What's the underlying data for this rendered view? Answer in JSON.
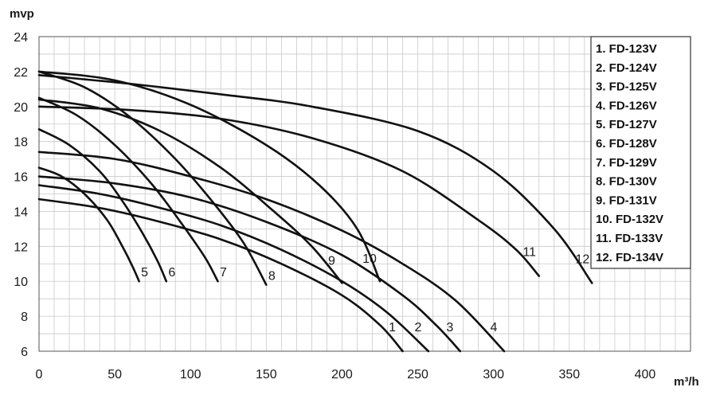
{
  "chart_data": {
    "type": "line",
    "title": "",
    "ylabel": "mvp",
    "xlabel": "m³/h",
    "xlim": [
      0,
      430
    ],
    "ylim": [
      6,
      24
    ],
    "x_ticks": [
      "0",
      "50",
      "100",
      "150",
      "200",
      "250",
      "300",
      "350",
      "400"
    ],
    "y_ticks": [
      "6",
      "8",
      "10",
      "12",
      "14",
      "16",
      "18",
      "20",
      "22",
      "24"
    ],
    "grid": true,
    "legend_position": "top-right",
    "legend": [
      "1. FD-123V",
      "2. FD-124V",
      "3. FD-125V",
      "4. FD-126V",
      "5. FD-127V",
      "6. FD-128V",
      "7. FD-129V",
      "8. FD-130V",
      "9. FD-131V",
      "10. FD-132V",
      "11. FD-133V",
      "12. FD-134V"
    ],
    "series": [
      {
        "label": "1",
        "name": "FD-123V",
        "points": [
          [
            0,
            14.7
          ],
          [
            40,
            14.2
          ],
          [
            80,
            13.4
          ],
          [
            120,
            12.4
          ],
          [
            160,
            11.0
          ],
          [
            200,
            9.2
          ],
          [
            225,
            7.5
          ],
          [
            240,
            6.0
          ]
        ]
      },
      {
        "label": "2",
        "name": "FD-124V",
        "points": [
          [
            0,
            15.5
          ],
          [
            40,
            15.0
          ],
          [
            80,
            14.2
          ],
          [
            120,
            13.2
          ],
          [
            160,
            11.8
          ],
          [
            200,
            10.0
          ],
          [
            230,
            8.2
          ],
          [
            257,
            6.0
          ]
        ]
      },
      {
        "label": "3",
        "name": "FD-125V",
        "points": [
          [
            0,
            16.0
          ],
          [
            50,
            15.6
          ],
          [
            100,
            14.8
          ],
          [
            150,
            13.4
          ],
          [
            200,
            11.5
          ],
          [
            240,
            9.2
          ],
          [
            262,
            7.5
          ],
          [
            278,
            6.0
          ]
        ]
      },
      {
        "label": "4",
        "name": "FD-126V",
        "points": [
          [
            0,
            17.4
          ],
          [
            50,
            17.0
          ],
          [
            100,
            16.0
          ],
          [
            150,
            14.7
          ],
          [
            200,
            12.9
          ],
          [
            240,
            11.0
          ],
          [
            275,
            8.9
          ],
          [
            307,
            6.0
          ]
        ]
      },
      {
        "label": "5",
        "name": "FD-127V",
        "points": [
          [
            0,
            16.5
          ],
          [
            15,
            16.0
          ],
          [
            30,
            15.0
          ],
          [
            45,
            13.5
          ],
          [
            55,
            12.0
          ],
          [
            62,
            10.8
          ],
          [
            66,
            10.0
          ]
        ]
      },
      {
        "label": "6",
        "name": "FD-128V",
        "points": [
          [
            0,
            18.7
          ],
          [
            20,
            17.8
          ],
          [
            40,
            16.3
          ],
          [
            55,
            14.6
          ],
          [
            68,
            12.8
          ],
          [
            78,
            11.2
          ],
          [
            84,
            10.0
          ]
        ]
      },
      {
        "label": "7",
        "name": "FD-129V",
        "points": [
          [
            0,
            20.5
          ],
          [
            25,
            19.5
          ],
          [
            50,
            17.8
          ],
          [
            75,
            15.5
          ],
          [
            95,
            13.2
          ],
          [
            110,
            11.3
          ],
          [
            118,
            10.0
          ]
        ]
      },
      {
        "label": "8",
        "name": "FD-130V",
        "points": [
          [
            0,
            22.0
          ],
          [
            30,
            21.1
          ],
          [
            60,
            19.4
          ],
          [
            90,
            17.0
          ],
          [
            115,
            14.5
          ],
          [
            135,
            12.2
          ],
          [
            150,
            9.8
          ]
        ]
      },
      {
        "label": "9",
        "name": "FD-131V",
        "points": [
          [
            0,
            20.4
          ],
          [
            40,
            19.9
          ],
          [
            80,
            18.6
          ],
          [
            120,
            16.5
          ],
          [
            155,
            14.0
          ],
          [
            180,
            12.0
          ],
          [
            200,
            9.9
          ]
        ]
      },
      {
        "label": "10",
        "name": "FD-132V",
        "points": [
          [
            0,
            22.0
          ],
          [
            50,
            21.5
          ],
          [
            100,
            20.1
          ],
          [
            150,
            17.8
          ],
          [
            185,
            15.5
          ],
          [
            210,
            13.0
          ],
          [
            225,
            10.0
          ]
        ]
      },
      {
        "label": "11",
        "name": "FD-133V",
        "points": [
          [
            0,
            20.0
          ],
          [
            60,
            19.8
          ],
          [
            120,
            19.3
          ],
          [
            180,
            18.2
          ],
          [
            240,
            16.3
          ],
          [
            290,
            13.5
          ],
          [
            315,
            11.8
          ],
          [
            330,
            10.3
          ]
        ]
      },
      {
        "label": "12",
        "name": "FD-134V",
        "points": [
          [
            0,
            21.8
          ],
          [
            60,
            21.3
          ],
          [
            120,
            20.7
          ],
          [
            180,
            20.0
          ],
          [
            250,
            18.6
          ],
          [
            300,
            16.3
          ],
          [
            340,
            13.0
          ],
          [
            365,
            9.9
          ]
        ]
      }
    ]
  }
}
